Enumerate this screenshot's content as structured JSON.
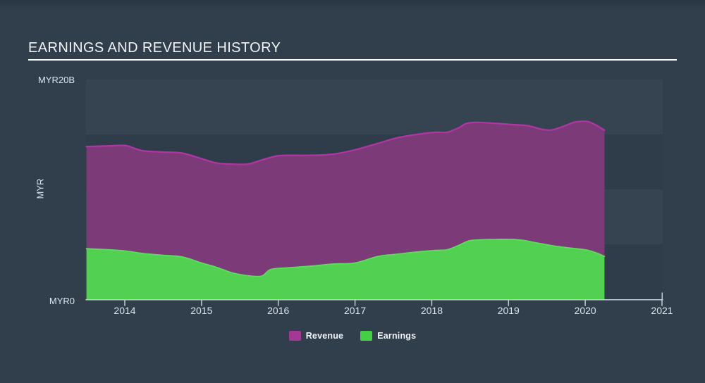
{
  "page": {
    "title": "EARNINGS AND REVENUE HISTORY"
  },
  "colors": {
    "background": "#313f4d",
    "title_text": "#eff3f6",
    "axis": "#c3ccd5",
    "tick_text": "#dce3ea",
    "revenue_fill": "#7c3b78",
    "revenue_line": "#b136a4",
    "revenue_legend": "#a23a95",
    "earnings_fill": "#51d052",
    "earnings_line": "#5edc5e",
    "earnings_legend": "#45cf45"
  },
  "chart_data": {
    "type": "area",
    "title": "EARNINGS AND REVENUE HISTORY",
    "currency": "MYR",
    "ylabel": "MYR",
    "y_top_label": "MYR20B",
    "y_bottom_label": "MYR0",
    "ylim_billions": [
      0,
      20
    ],
    "x_ticks": [
      2014,
      2015,
      2016,
      2017,
      2018,
      2019,
      2020,
      2021
    ],
    "x_axis_range": [
      2013.5,
      2021.0
    ],
    "data_x_range": [
      2013.5,
      2020.25
    ],
    "grid": "subtle horizontal 5B bands",
    "legend_position": "bottom-center",
    "unit": "billions MYR",
    "series": [
      {
        "name": "Revenue",
        "fill": "#7c3b78",
        "line": "#b136a4",
        "legend_color": "#a23a95",
        "x": [
          2013.5,
          2013.75,
          2014.0,
          2014.1,
          2014.25,
          2014.5,
          2014.75,
          2015.0,
          2015.2,
          2015.4,
          2015.6,
          2015.75,
          2015.95,
          2016.1,
          2016.4,
          2016.7,
          2017.0,
          2017.3,
          2017.55,
          2017.8,
          2018.05,
          2018.2,
          2018.35,
          2018.45,
          2018.6,
          2018.85,
          2019.05,
          2019.25,
          2019.42,
          2019.55,
          2019.7,
          2019.85,
          2020.0,
          2020.1,
          2020.25
        ],
        "values": [
          13.9,
          13.95,
          14.0,
          13.8,
          13.5,
          13.4,
          13.3,
          12.8,
          12.4,
          12.3,
          12.3,
          12.6,
          13.0,
          13.1,
          13.1,
          13.2,
          13.6,
          14.2,
          14.7,
          15.0,
          15.2,
          15.2,
          15.6,
          16.0,
          16.1,
          16.0,
          15.9,
          15.8,
          15.5,
          15.4,
          15.7,
          16.1,
          16.2,
          16.0,
          15.4
        ]
      },
      {
        "name": "Earnings",
        "fill": "#51d052",
        "line": "#5edc5e",
        "legend_color": "#45cf45",
        "x": [
          2013.5,
          2013.8,
          2014.0,
          2014.25,
          2014.5,
          2014.75,
          2015.0,
          2015.2,
          2015.4,
          2015.6,
          2015.78,
          2015.9,
          2016.1,
          2016.4,
          2016.7,
          2017.0,
          2017.3,
          2017.55,
          2017.8,
          2018.05,
          2018.2,
          2018.35,
          2018.48,
          2018.6,
          2018.85,
          2019.05,
          2019.2,
          2019.35,
          2019.55,
          2019.75,
          2020.0,
          2020.15,
          2020.25
        ],
        "values": [
          4.6,
          4.5,
          4.4,
          4.15,
          4.0,
          3.85,
          3.3,
          2.9,
          2.4,
          2.15,
          2.1,
          2.7,
          2.85,
          3.0,
          3.2,
          3.3,
          3.9,
          4.1,
          4.3,
          4.45,
          4.5,
          4.9,
          5.3,
          5.4,
          5.45,
          5.45,
          5.35,
          5.15,
          4.9,
          4.7,
          4.5,
          4.2,
          3.9
        ]
      }
    ]
  }
}
